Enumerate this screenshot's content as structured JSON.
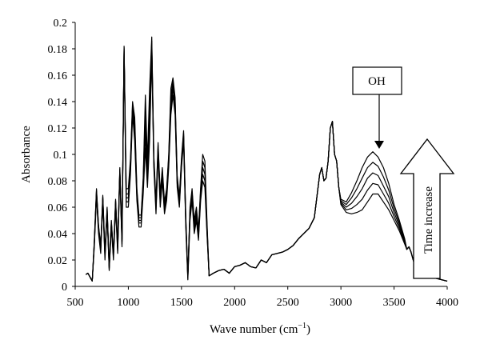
{
  "chart_data": {
    "type": "line",
    "title": "",
    "xlabel": "Wave number (cm",
    "xlabel_sup": "−1",
    "xlabel_close": ")",
    "ylabel": "Absorbance",
    "xlim": [
      500,
      4000
    ],
    "ylim": [
      0,
      0.2
    ],
    "xticks": [
      500,
      1000,
      1500,
      2000,
      2500,
      3000,
      3500,
      4000
    ],
    "yticks": [
      0,
      0.02,
      0.04,
      0.06,
      0.08,
      0.1,
      0.12,
      0.14,
      0.16,
      0.18,
      0.2
    ],
    "grid": false,
    "legend": "none",
    "line_color": "#000000",
    "x": [
      600,
      620,
      640,
      660,
      680,
      700,
      720,
      740,
      760,
      780,
      800,
      820,
      840,
      860,
      880,
      900,
      920,
      940,
      960,
      980,
      1000,
      1020,
      1040,
      1060,
      1080,
      1100,
      1120,
      1140,
      1160,
      1180,
      1200,
      1220,
      1240,
      1260,
      1280,
      1300,
      1320,
      1340,
      1360,
      1380,
      1400,
      1420,
      1440,
      1460,
      1480,
      1500,
      1520,
      1540,
      1560,
      1580,
      1600,
      1620,
      1640,
      1660,
      1680,
      1700,
      1720,
      1740,
      1760,
      1800,
      1850,
      1900,
      1950,
      2000,
      2050,
      2100,
      2150,
      2200,
      2250,
      2300,
      2350,
      2400,
      2450,
      2500,
      2550,
      2600,
      2650,
      2700,
      2750,
      2800,
      2820,
      2840,
      2860,
      2880,
      2900,
      2920,
      2940,
      2960,
      2980,
      3000,
      3050,
      3100,
      3150,
      3200,
      3250,
      3300,
      3350,
      3400,
      3450,
      3500,
      3550,
      3600,
      3620,
      3640,
      3660,
      3680,
      3700,
      3800,
      3900,
      4000
    ],
    "series": [
      {
        "values": [
          0.009,
          0.01,
          0.007,
          0.004,
          0.03,
          0.068,
          0.04,
          0.025,
          0.065,
          0.02,
          0.055,
          0.012,
          0.045,
          0.02,
          0.06,
          0.025,
          0.085,
          0.03,
          0.178,
          0.06,
          0.06,
          0.085,
          0.13,
          0.11,
          0.065,
          0.045,
          0.045,
          0.07,
          0.105,
          0.075,
          0.11,
          0.175,
          0.09,
          0.055,
          0.1,
          0.06,
          0.08,
          0.055,
          0.065,
          0.09,
          0.13,
          0.145,
          0.13,
          0.075,
          0.06,
          0.09,
          0.11,
          0.045,
          0.005,
          0.05,
          0.065,
          0.04,
          0.05,
          0.035,
          0.065,
          0.08,
          0.075,
          0.04,
          0.008,
          0.01,
          0.012,
          0.013,
          0.01,
          0.015,
          0.016,
          0.018,
          0.015,
          0.014,
          0.02,
          0.018,
          0.024,
          0.025,
          0.026,
          0.028,
          0.031,
          0.036,
          0.04,
          0.044,
          0.052,
          0.085,
          0.09,
          0.08,
          0.082,
          0.095,
          0.12,
          0.125,
          0.1,
          0.095,
          0.075,
          0.062,
          0.056,
          0.055,
          0.056,
          0.058,
          0.064,
          0.07,
          0.07,
          0.064,
          0.058,
          0.05,
          0.042,
          0.032,
          0.028,
          0.03,
          0.026,
          0.02,
          0.015,
          0.01,
          0.006,
          0.004
        ]
      },
      {
        "values": [
          0.009,
          0.01,
          0.007,
          0.004,
          0.032,
          0.07,
          0.042,
          0.027,
          0.066,
          0.022,
          0.056,
          0.013,
          0.046,
          0.022,
          0.062,
          0.027,
          0.087,
          0.032,
          0.179,
          0.064,
          0.064,
          0.088,
          0.133,
          0.116,
          0.068,
          0.048,
          0.048,
          0.075,
          0.115,
          0.08,
          0.12,
          0.18,
          0.093,
          0.058,
          0.102,
          0.063,
          0.083,
          0.058,
          0.068,
          0.093,
          0.135,
          0.15,
          0.134,
          0.078,
          0.062,
          0.092,
          0.112,
          0.048,
          0.006,
          0.053,
          0.068,
          0.043,
          0.053,
          0.037,
          0.068,
          0.085,
          0.08,
          0.042,
          0.008,
          0.01,
          0.012,
          0.013,
          0.01,
          0.015,
          0.016,
          0.018,
          0.015,
          0.014,
          0.02,
          0.018,
          0.024,
          0.025,
          0.026,
          0.028,
          0.031,
          0.036,
          0.04,
          0.044,
          0.052,
          0.085,
          0.09,
          0.08,
          0.082,
          0.095,
          0.12,
          0.125,
          0.1,
          0.095,
          0.075,
          0.063,
          0.058,
          0.059,
          0.062,
          0.066,
          0.073,
          0.078,
          0.077,
          0.07,
          0.063,
          0.053,
          0.044,
          0.033,
          0.028,
          0.03,
          0.026,
          0.02,
          0.015,
          0.01,
          0.006,
          0.004
        ]
      },
      {
        "values": [
          0.009,
          0.01,
          0.007,
          0.004,
          0.033,
          0.072,
          0.044,
          0.029,
          0.067,
          0.024,
          0.058,
          0.014,
          0.048,
          0.023,
          0.064,
          0.029,
          0.088,
          0.034,
          0.18,
          0.067,
          0.067,
          0.091,
          0.136,
          0.12,
          0.07,
          0.05,
          0.05,
          0.078,
          0.125,
          0.085,
          0.13,
          0.183,
          0.095,
          0.06,
          0.105,
          0.066,
          0.086,
          0.06,
          0.07,
          0.096,
          0.14,
          0.153,
          0.137,
          0.08,
          0.064,
          0.094,
          0.114,
          0.05,
          0.007,
          0.056,
          0.07,
          0.046,
          0.056,
          0.039,
          0.071,
          0.09,
          0.085,
          0.045,
          0.008,
          0.01,
          0.012,
          0.013,
          0.01,
          0.015,
          0.016,
          0.018,
          0.015,
          0.014,
          0.02,
          0.018,
          0.024,
          0.025,
          0.026,
          0.028,
          0.031,
          0.036,
          0.04,
          0.044,
          0.052,
          0.085,
          0.09,
          0.08,
          0.082,
          0.095,
          0.12,
          0.125,
          0.1,
          0.095,
          0.075,
          0.064,
          0.06,
          0.063,
          0.068,
          0.074,
          0.082,
          0.086,
          0.084,
          0.076,
          0.068,
          0.056,
          0.046,
          0.034,
          0.028,
          0.03,
          0.026,
          0.02,
          0.015,
          0.01,
          0.006,
          0.004
        ]
      },
      {
        "values": [
          0.009,
          0.01,
          0.007,
          0.004,
          0.034,
          0.073,
          0.045,
          0.03,
          0.068,
          0.025,
          0.059,
          0.015,
          0.049,
          0.024,
          0.065,
          0.03,
          0.089,
          0.035,
          0.181,
          0.07,
          0.07,
          0.094,
          0.138,
          0.124,
          0.072,
          0.052,
          0.052,
          0.08,
          0.135,
          0.09,
          0.14,
          0.186,
          0.097,
          0.062,
          0.107,
          0.068,
          0.088,
          0.062,
          0.072,
          0.098,
          0.145,
          0.156,
          0.14,
          0.082,
          0.066,
          0.096,
          0.116,
          0.052,
          0.008,
          0.058,
          0.072,
          0.048,
          0.058,
          0.041,
          0.073,
          0.095,
          0.09,
          0.047,
          0.008,
          0.01,
          0.012,
          0.013,
          0.01,
          0.015,
          0.016,
          0.018,
          0.015,
          0.014,
          0.02,
          0.018,
          0.024,
          0.025,
          0.026,
          0.028,
          0.031,
          0.036,
          0.04,
          0.044,
          0.052,
          0.085,
          0.09,
          0.08,
          0.082,
          0.095,
          0.12,
          0.125,
          0.1,
          0.095,
          0.075,
          0.065,
          0.062,
          0.067,
          0.074,
          0.082,
          0.09,
          0.094,
          0.091,
          0.083,
          0.073,
          0.059,
          0.048,
          0.035,
          0.028,
          0.03,
          0.026,
          0.02,
          0.015,
          0.01,
          0.006,
          0.004
        ]
      },
      {
        "values": [
          0.009,
          0.01,
          0.007,
          0.004,
          0.035,
          0.074,
          0.046,
          0.031,
          0.069,
          0.026,
          0.06,
          0.016,
          0.05,
          0.025,
          0.066,
          0.031,
          0.09,
          0.036,
          0.182,
          0.074,
          0.074,
          0.097,
          0.14,
          0.128,
          0.074,
          0.054,
          0.054,
          0.082,
          0.145,
          0.095,
          0.15,
          0.189,
          0.099,
          0.064,
          0.109,
          0.07,
          0.09,
          0.064,
          0.074,
          0.1,
          0.15,
          0.158,
          0.143,
          0.084,
          0.068,
          0.098,
          0.118,
          0.054,
          0.009,
          0.06,
          0.074,
          0.05,
          0.06,
          0.043,
          0.075,
          0.1,
          0.095,
          0.05,
          0.008,
          0.01,
          0.012,
          0.013,
          0.01,
          0.015,
          0.016,
          0.018,
          0.015,
          0.014,
          0.02,
          0.018,
          0.024,
          0.025,
          0.026,
          0.028,
          0.031,
          0.036,
          0.04,
          0.044,
          0.052,
          0.085,
          0.09,
          0.08,
          0.082,
          0.095,
          0.12,
          0.125,
          0.1,
          0.095,
          0.075,
          0.066,
          0.064,
          0.071,
          0.08,
          0.09,
          0.098,
          0.102,
          0.098,
          0.09,
          0.078,
          0.062,
          0.05,
          0.036,
          0.028,
          0.03,
          0.026,
          0.02,
          0.015,
          0.01,
          0.006,
          0.004
        ]
      }
    ],
    "annotations": [
      {
        "text": "OH",
        "kind": "boxed-label-with-arrow",
        "points_to": {
          "x": 3330,
          "y": 0.103
        }
      },
      {
        "text": "Time increase",
        "kind": "hollow-up-arrow",
        "x_range": [
          3630,
          3950
        ],
        "y_range": [
          0.007,
          0.11
        ]
      }
    ]
  }
}
